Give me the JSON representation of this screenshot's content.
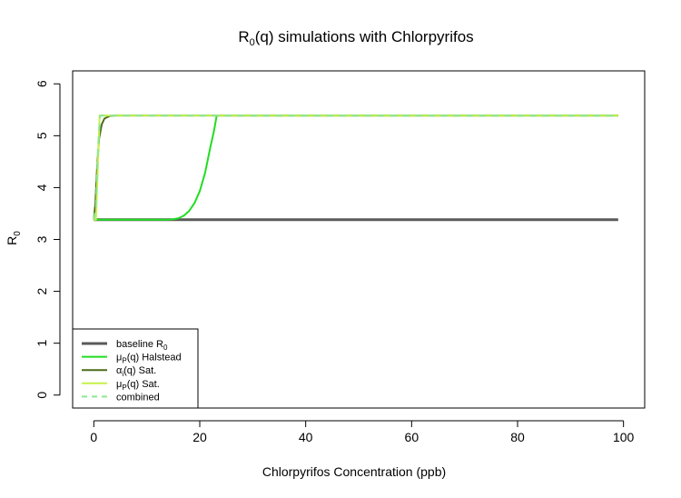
{
  "chart_data": {
    "type": "line",
    "title": {
      "main": "R",
      "sub": "0",
      "tail": "(q) simulations with Chlorpyrifos"
    },
    "xlabel": "Chlorpyrifos Concentration (ppb)",
    "ylabel": {
      "main": "R",
      "sub": "0"
    },
    "xlim": [
      -4,
      104
    ],
    "ylim": [
      -0.25,
      6.25
    ],
    "x_ticks": [
      0,
      20,
      40,
      60,
      80,
      100
    ],
    "y_ticks": [
      0,
      1,
      2,
      3,
      4,
      5,
      6
    ],
    "grid": false,
    "legend_position": "bottom-left",
    "series": [
      {
        "label_main": "baseline R",
        "label_sub": "0",
        "label_tail": "",
        "color": "#5a5a5a",
        "dash": "solid",
        "width": 3,
        "points": [
          [
            0,
            3.38
          ],
          [
            99,
            3.38
          ]
        ]
      },
      {
        "label_main": "μ",
        "label_sub": "P",
        "label_tail": "(q) Halstead",
        "color": "#22dd22",
        "dash": "solid",
        "width": 2,
        "points": [
          [
            0,
            3.38
          ],
          [
            14,
            3.38
          ],
          [
            15,
            3.39
          ],
          [
            16,
            3.41
          ],
          [
            17,
            3.46
          ],
          [
            18,
            3.55
          ],
          [
            19,
            3.7
          ],
          [
            20,
            3.93
          ],
          [
            21,
            4.28
          ],
          [
            22,
            4.78
          ],
          [
            22.7,
            5.1
          ],
          [
            23.2,
            5.39
          ],
          [
            99,
            5.39
          ]
        ]
      },
      {
        "label_main": "α",
        "label_sub": "i",
        "label_tail": "(q) Sat.",
        "color": "#4d6b1a",
        "dash": "solid",
        "width": 2,
        "points": [
          [
            0,
            3.38
          ],
          [
            0.3,
            3.7
          ],
          [
            0.6,
            4.35
          ],
          [
            1.0,
            4.95
          ],
          [
            1.5,
            5.22
          ],
          [
            2.0,
            5.33
          ],
          [
            3.0,
            5.38
          ],
          [
            4.0,
            5.39
          ],
          [
            99,
            5.39
          ]
        ]
      },
      {
        "label_main": "μ",
        "label_sub": "P",
        "label_tail": "(q) Sat.",
        "color": "#c5f04a",
        "dash": "solid",
        "width": 2,
        "points": [
          [
            0,
            3.38
          ],
          [
            0.4,
            3.38
          ],
          [
            1.1,
            5.39
          ],
          [
            99,
            5.39
          ]
        ]
      },
      {
        "label_main": "combined",
        "label_sub": "",
        "label_tail": "",
        "color": "#8ee88e",
        "dash": "dashed",
        "width": 2,
        "points": [
          [
            0,
            3.38
          ],
          [
            0.4,
            3.6
          ],
          [
            0.8,
            4.8
          ],
          [
            1.2,
            5.39
          ],
          [
            99,
            5.39
          ]
        ]
      }
    ]
  }
}
